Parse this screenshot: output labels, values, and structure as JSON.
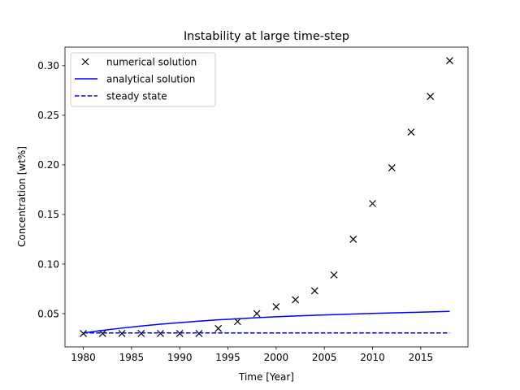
{
  "chart_data": {
    "type": "line",
    "title": "Instability at large time-step",
    "xlabel": "Time [Year]",
    "ylabel": "Concentration [wt%]",
    "xlim": [
      1978.1,
      2019.9
    ],
    "ylim": [
      0.0164,
      0.3187
    ],
    "xticks": [
      1980,
      1985,
      1990,
      1995,
      2000,
      2005,
      2010,
      2015
    ],
    "yticks": [
      0.05,
      0.1,
      0.15,
      0.2,
      0.25,
      0.3
    ],
    "ytick_labels": [
      "0.05",
      "0.10",
      "0.15",
      "0.20",
      "0.25",
      "0.30"
    ],
    "grid": false,
    "legend_position": "upper-left",
    "series": [
      {
        "name": "numerical solution",
        "style": "markers",
        "marker": "x",
        "color": "#000000",
        "x": [
          1980,
          1982,
          1984,
          1986,
          1988,
          1990,
          1992,
          1994,
          1996,
          1998,
          2000,
          2002,
          2004,
          2006,
          2008,
          2010,
          2012,
          2014,
          2016,
          2018
        ],
        "y": [
          0.03,
          0.03,
          0.03,
          0.03,
          0.03,
          0.03,
          0.03,
          0.035,
          0.042,
          0.05,
          0.057,
          0.064,
          0.073,
          0.089,
          0.125,
          0.161,
          0.197,
          0.233,
          0.269,
          0.305
        ]
      },
      {
        "name": "analytical solution",
        "style": "solid",
        "color": "#0000ff",
        "x": [
          1980,
          1982,
          1984,
          1986,
          1988,
          1990,
          1992,
          1994,
          1996,
          1998,
          2000,
          2002,
          2004,
          2006,
          2008,
          2010,
          2012,
          2014,
          2016,
          2018
        ],
        "y": [
          0.0305,
          0.0331,
          0.0354,
          0.0375,
          0.0393,
          0.0409,
          0.0424,
          0.0437,
          0.0448,
          0.0459,
          0.0468,
          0.0476,
          0.0483,
          0.049,
          0.0496,
          0.0502,
          0.0507,
          0.0512,
          0.0517,
          0.0522
        ]
      },
      {
        "name": "steady state",
        "style": "dashed",
        "color": "#0000ff",
        "x": [
          1980,
          2018
        ],
        "y": [
          0.0305,
          0.0305
        ]
      }
    ]
  }
}
